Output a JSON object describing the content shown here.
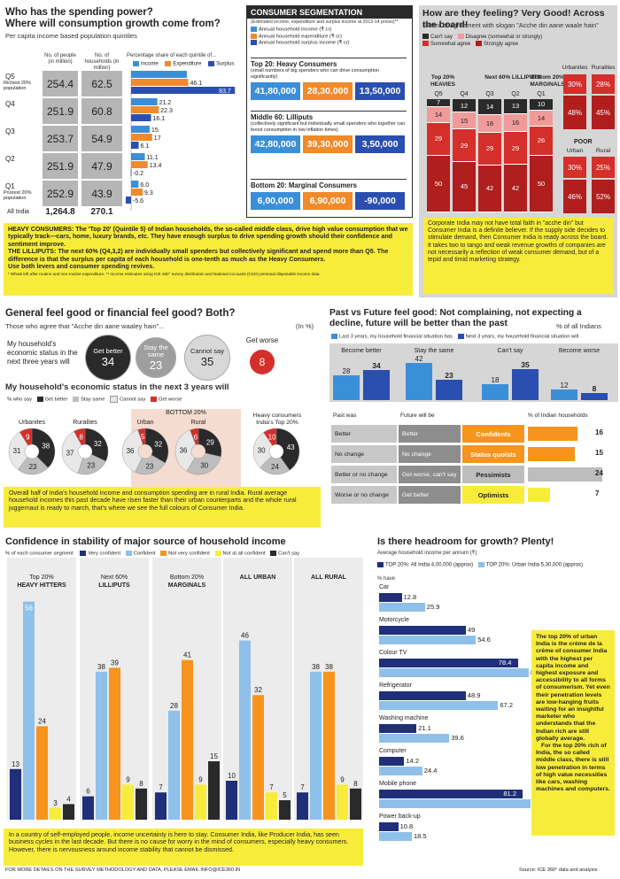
{
  "colors": {
    "income": "#3b8fd9",
    "expenditure": "#f08a2a",
    "surplus": "#2b4fb0",
    "dark": "#1f2f7a",
    "light": "#8fc0ea",
    "red": "#d42f2a",
    "darkred": "#b01e1e",
    "pink": "#f19a9a",
    "charcoal": "#2a2a2a",
    "yellow": "#f8ec3b",
    "orange": "#f7941d"
  },
  "s1": {
    "title": "Who has the spending power?",
    "subtitle": "Where will consumption growth come from?",
    "note": "Per capita income based population quintiles",
    "col_people": "No. of people (in million)",
    "col_households": "No. of households (in million)",
    "col_share": "Percentage share of each quintile of...",
    "leg": [
      "Income",
      "Expenditure",
      "Surplus"
    ],
    "rows": [
      {
        "label": "Q5",
        "sub": "Richest 20% population",
        "people": "254.4",
        "households": "62.5"
      },
      {
        "label": "Q4",
        "sub": "",
        "people": "251.9",
        "households": "60.8"
      },
      {
        "label": "Q3",
        "sub": "",
        "people": "253.7",
        "households": "54.9"
      },
      {
        "label": "Q2",
        "sub": "",
        "people": "251.9",
        "households": "47.9"
      },
      {
        "label": "Q1",
        "sub": "Poorest 20% population",
        "people": "252.9",
        "households": "43.9"
      }
    ],
    "all_label": "All India",
    "all_people": "1,264.8",
    "all_households": "270.1",
    "desc1": "HEAVY CONSUMERS: The 'Top 20' (Quintile 5) of Indian households, the so-called middle class, drive high value consumption that we typically track—cars, home, luxury brands, etc. They have enough surplus to drive spending growth should their confidence and sentiment improve.",
    "desc2": "THE LILLIPUTS: The next 60% (Q4,3,2) are individually small spenders but collectively significant and spend more than Q5. The difference is that the surplus per capita of each household is one-tenth as much as the Heavy Consumers.",
    "desc3": "Use both levers and consumer spending revives.",
    "footnote": "* Whats left after routine and non-routine expenditure. ** Income estimates using ICE 360° survey distribution and National Accounts (CSO) personal disposable income data."
  },
  "quintile_chart": {
    "type": "bar",
    "categories": [
      "Q5",
      "Q4",
      "Q3",
      "Q2",
      "Q1"
    ],
    "series": [
      {
        "name": "Income",
        "values": [
          45.0,
          21.2,
          15.0,
          11.1,
          6.0
        ]
      },
      {
        "name": "Expenditure",
        "values": [
          46.1,
          22.3,
          17.0,
          13.4,
          9.3
        ]
      },
      {
        "name": "Surplus",
        "values": [
          83.7,
          16.1,
          6.1,
          -0.2,
          -5.6
        ]
      }
    ],
    "labels": [
      [
        "",
        "46.1",
        "83.7"
      ],
      [
        "21.2",
        "22.3",
        "16.1"
      ],
      [
        "15",
        "17",
        "6.1"
      ],
      [
        "11.1",
        "13.4",
        "-0.2"
      ],
      [
        "6.0",
        "9.3",
        "-5.6"
      ]
    ]
  },
  "s2": {
    "title": "CONSUMER SEGMENTATION",
    "note": "(Estimated income, expenditure and surplus income at 2013-14 prices)**",
    "leg": [
      "Annual household income (₹ cr)",
      "Annual household expenditure (₹ cr)",
      "Annual household surplus income (₹ cr)"
    ],
    "groups": [
      {
        "title": "Top 20: Heavy Consumers",
        "desc": "(small numbers of big spenders who can drive consumption significantly)",
        "values": [
          "41,80,000",
          "28,30,000",
          "13,50,000"
        ]
      },
      {
        "title": "Middle 60: Lilliputs",
        "desc": "(collectively significant but individually small spenders who together can boost consumption in low inflation times)",
        "values": [
          "42,80,000",
          "39,30,000",
          "3,50,000"
        ]
      },
      {
        "title": "Bottom 20: Marginal Consumers",
        "desc": "",
        "values": [
          "6,00,000",
          "6,90,000",
          "-90,000"
        ]
      }
    ]
  },
  "s3": {
    "title": "How are they feeling? Very Good! Across the board!",
    "subtitle": "Extent of agreement with slogan \"Acche din aane waale hain\"",
    "leg": [
      "Can't say",
      "Disagree (somewhat or strongly)",
      "Somewhat agree",
      "Strongly agree"
    ],
    "groups": [
      "Top 20% HEAVIES",
      "Next 60% LILLIPUTS",
      "Bottom 20% MARGINALS"
    ],
    "cols": [
      "Q5",
      "Q4",
      "Q3",
      "Q2",
      "Q1"
    ],
    "values": [
      {
        "cant": "7",
        "dis": "14",
        "some": "29",
        "strong": "50"
      },
      {
        "cant": "12",
        "dis": "15",
        "some": "29",
        "strong": "45"
      },
      {
        "cant": "14",
        "dis": "16",
        "some": "29",
        "strong": "42"
      },
      {
        "cant": "13",
        "dis": "16",
        "some": "29",
        "strong": "42"
      },
      {
        "cant": "10",
        "dis": "14",
        "some": "26",
        "strong": "50"
      }
    ],
    "urbanites_label": "Urbanites",
    "urbanites": [
      "30%",
      "48%"
    ],
    "ruralites_label": "Ruralites",
    "ruralites": [
      "28%",
      "45%"
    ],
    "poor_label": "POOR",
    "urban_label": "Urban",
    "rural_label": "Rural",
    "poor_urban": [
      "30%",
      "46%"
    ],
    "poor_rural": [
      "25%",
      "52%"
    ],
    "desc": "Corporate India may not have total faith in \"acche din\" but Consumer India is a definite believer. If the supply side decides to stimulate demand, then Consumer India is ready across the board. It takes two to tango and weak revenue growths of companies are not necessarily a reflection of weak consumer demand, but of a tepid and timid marketing strategy."
  },
  "s4": {
    "title": "General feel good or financial feel good? Both?",
    "note": "Those who agree that \"Acche din aane waaley hain\"...",
    "unit": "(In %)",
    "lead": "My household's economic status in the next three years will",
    "circles": [
      {
        "label": "Get better",
        "value": "34"
      },
      {
        "label": "Stay the same",
        "value": "23"
      },
      {
        "label": "Cannot say",
        "value": "35"
      },
      {
        "label": "Get worse",
        "value": "8"
      }
    ],
    "donut_title": "My household's economic status in the next 3 years will",
    "who": "% who say",
    "leg": [
      "Get better",
      "Stay same",
      "Cannot say",
      "Get worse"
    ],
    "bottom20": "BOTTOM 20%",
    "heavy_label": "Heavy consumers India's Top 20%",
    "donuts": [
      {
        "label": "Urbanites",
        "values": [
          38,
          23,
          31,
          9
        ]
      },
      {
        "label": "Ruralites",
        "values": [
          32,
          23,
          37,
          8
        ]
      },
      {
        "label": "Urban",
        "values": [
          32,
          23,
          36,
          5
        ]
      },
      {
        "label": "Rural",
        "values": [
          29,
          30,
          36,
          6
        ]
      },
      {
        "label": "",
        "values": [
          43,
          24,
          30,
          10
        ]
      }
    ],
    "desc": "Overall half of India's household income and consumption spending are in rural India. Rural average household incomes this past decade have risen faster than their urban counterparts and the whole rural juggernaut is ready to march, that's where we see the full colours of Consumer India."
  },
  "s5": {
    "title": "Past vs Future feel good: Not complaining, not expecting a decline, future will be better than the past",
    "unit": "% of all Indians",
    "leg": [
      "Last 3 years, my household financial situation has",
      "Next 3 years, my household financial situation will"
    ],
    "cats": [
      "Become better",
      "Stay the same",
      "Can't say",
      "Become worse"
    ],
    "past": [
      28,
      42,
      18,
      12
    ],
    "future": [
      34,
      23,
      35,
      8
    ],
    "hdr": [
      "Past was",
      "Future will be",
      "% of Indian households"
    ],
    "rows": [
      {
        "past": "Better",
        "future": "Better",
        "seg": "Confidents",
        "val": 16
      },
      {
        "past": "No change",
        "future": "No change",
        "seg": "Status quoists",
        "val": 15
      },
      {
        "past": "Better or no change",
        "future": "Get worse, can't say",
        "seg": "Pessimists",
        "val": 24
      },
      {
        "past": "Worse or no change",
        "future": "Get better",
        "seg": "Optimists",
        "val": 7
      }
    ]
  },
  "s6": {
    "title": "Confidence in stability of major source of household income",
    "yl": "% of each consumer segment",
    "leg": [
      "Very confident",
      "Confident",
      "Not very confident",
      "Not at all confident",
      "Can't say"
    ],
    "groups": [
      {
        "name": "Top 20% HEAVY HITTERS",
        "values": [
          13,
          56,
          24,
          3,
          4
        ]
      },
      {
        "name": "Next 60% LILLIPUTS",
        "values": [
          6,
          38,
          39,
          9,
          8
        ]
      },
      {
        "name": "Bottom 20% MARGINALS",
        "values": [
          7,
          28,
          41,
          9,
          15
        ]
      },
      {
        "name": "ALL URBAN",
        "values": [
          10,
          46,
          32,
          7,
          5
        ]
      },
      {
        "name": "ALL RURAL",
        "values": [
          7,
          38,
          38,
          9,
          8
        ]
      }
    ],
    "desc": "In a country of self-employed people, income uncertainty is here to stay. Consumer India, like Producer India, has seen business cycles in the last decade. But there is no cause for worry in the mind of consumers, especially heavy consumers. However, there is nervousness around income stability that cannot be dismissed."
  },
  "s7": {
    "title": "Is there headroom for growth? Plenty!",
    "sub": "Average household income per annum (₹)",
    "leg": [
      "TOP 20%: All India 4,00,000 (approx)",
      "TOP 20%: Urban India 5,30,000 (approx)"
    ],
    "have": "% have",
    "items": [
      {
        "name": "Car",
        "a": 12.8,
        "b": 25.9
      },
      {
        "name": "Motorcycle",
        "a": 49,
        "b": 54.6
      },
      {
        "name": "Colour TV",
        "a": 78.4,
        "b": 84.5
      },
      {
        "name": "Refrigerator",
        "a": 48.9,
        "b": 67.2
      },
      {
        "name": "Washing machine",
        "a": 21.1,
        "b": 39.6
      },
      {
        "name": "Computer",
        "a": 14.2,
        "b": 24.4
      },
      {
        "name": "Mobile phone",
        "a": 81.2,
        "b": 85.4
      },
      {
        "name": "Power back-up",
        "a": 10.8,
        "b": 18.5
      }
    ],
    "desc": "The top 20% of urban India is the crème de la crème of consumer India with the highest per capita income and highest exposure and accessibility to all forms of consumerism. Yet even their penetration levels are low-hanging fruits waiting for an insightful marketer who understands that the Indian rich are still globally average.",
    "desc2": "For the top 20% rich of India, the so called middle class, there is still low penetration in terms of high value necessities like cars, washing machines and computers."
  },
  "footer": "FOR MORE DETAILS ON THE SURVEY METHODOLOGY AND DATA, PLEASE EMAIL INFO@ICE360.IN",
  "source": "Source: ICE 360° data and analysis"
}
